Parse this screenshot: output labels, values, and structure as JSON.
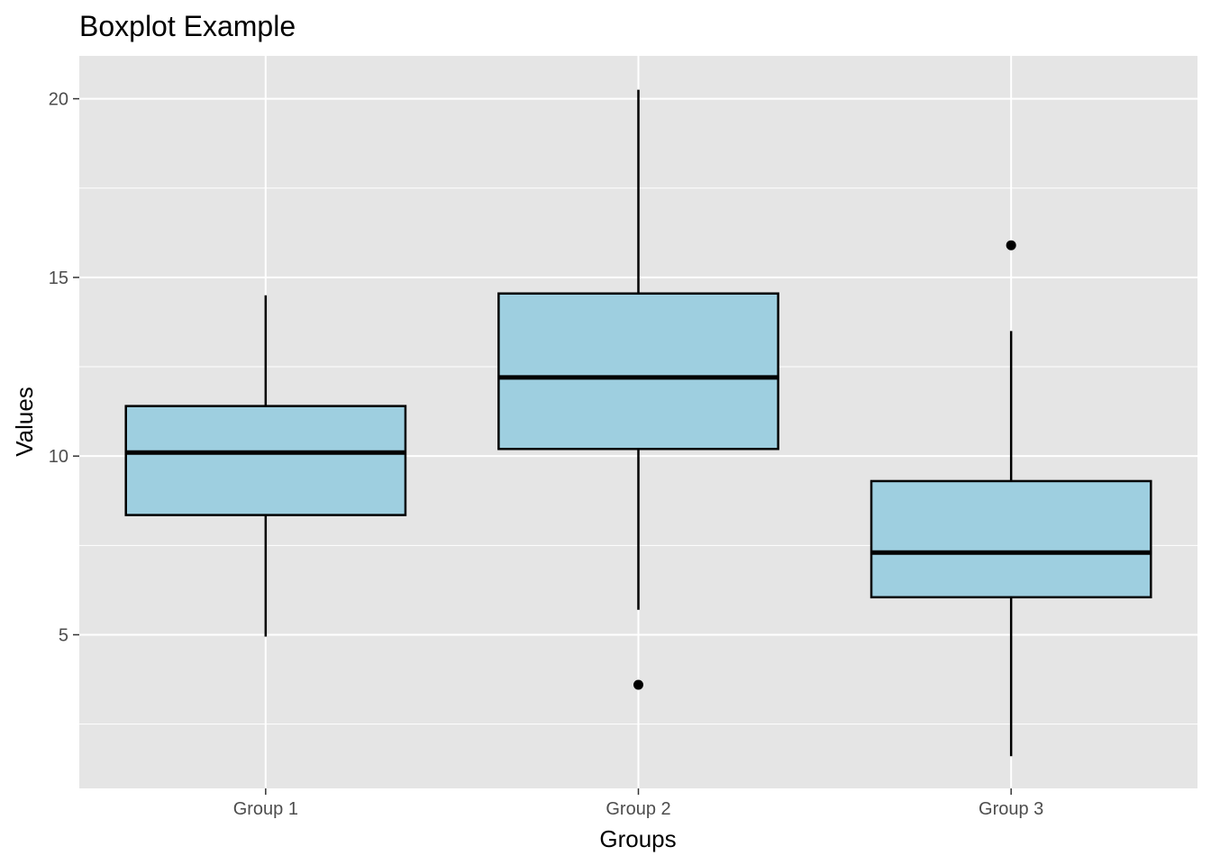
{
  "chart_data": {
    "type": "boxplot",
    "title": "Boxplot Example",
    "xlabel": "Groups",
    "ylabel": "Values",
    "categories": [
      "Group 1",
      "Group 2",
      "Group 3"
    ],
    "ylim": [
      0.7,
      21.2
    ],
    "yticks": [
      5,
      10,
      15,
      20
    ],
    "yticks_labels": [
      "5",
      "10",
      "15",
      "20"
    ],
    "grid": true,
    "legend": "none",
    "colors": {
      "panel_background": "#e5e5e5",
      "grid": "#ffffff",
      "box_fill": "#9ecfe0",
      "box_stroke": "#000000",
      "outlier": "#000000"
    },
    "boxes": [
      {
        "group": "Group 1",
        "whisker_low": 4.95,
        "q1": 8.35,
        "median": 10.1,
        "q3": 11.4,
        "whisker_high": 14.5,
        "outliers": []
      },
      {
        "group": "Group 2",
        "whisker_low": 5.7,
        "q1": 10.2,
        "median": 12.2,
        "q3": 14.55,
        "whisker_high": 20.25,
        "outliers": [
          3.6
        ]
      },
      {
        "group": "Group 3",
        "whisker_low": 1.6,
        "q1": 6.05,
        "median": 7.3,
        "q3": 9.3,
        "whisker_high": 13.5,
        "outliers": [
          15.9
        ]
      }
    ]
  }
}
